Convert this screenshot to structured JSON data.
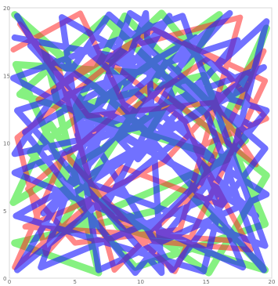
{
  "chart_data": {
    "type": "line",
    "xlim": [
      0,
      20
    ],
    "ylim": [
      0,
      20
    ],
    "y_ticks": [
      "0",
      "5",
      "10",
      "15",
      "20"
    ],
    "x_ticks": [
      "0",
      "5",
      "10",
      "15",
      "20"
    ],
    "grid": false,
    "legend": "none",
    "series": [
      {
        "color": "#22e61a",
        "points": [
          [
            0.4,
            19.5
          ],
          [
            6.2,
            14.6
          ],
          [
            11.6,
            19.6
          ],
          [
            17.5,
            12.7
          ],
          [
            19.6,
            18.5
          ],
          [
            13.8,
            6.2
          ],
          [
            19.5,
            0.6
          ],
          [
            8.3,
            3.8
          ],
          [
            3.1,
            11.4
          ],
          [
            0.3,
            5.6
          ],
          [
            7.5,
            9.8
          ],
          [
            12.4,
            13.2
          ],
          [
            19.6,
            7.6
          ],
          [
            15.2,
            0.4
          ],
          [
            4.4,
            7.4
          ],
          [
            0.5,
            15.8
          ],
          [
            9.8,
            15.2
          ],
          [
            16.0,
            19.5
          ],
          [
            10.6,
            10.7
          ],
          [
            2.5,
            17.6
          ],
          [
            6.8,
            0.4
          ],
          [
            0.4,
            2.6
          ],
          [
            11.2,
            5.0
          ],
          [
            18.0,
            10.2
          ],
          [
            8.8,
            19.4
          ],
          [
            5.1,
            12.7
          ],
          [
            14.8,
            15.0
          ],
          [
            19.5,
            4.0
          ],
          [
            9.6,
            0.8
          ],
          [
            1.6,
            9.3
          ],
          [
            12.9,
            17.4
          ],
          [
            3.6,
            3.4
          ],
          [
            16.6,
            8.8
          ],
          [
            0.8,
            13.6
          ],
          [
            7.3,
            19.2
          ],
          [
            15.9,
            11.3
          ]
        ]
      },
      {
        "color": "#ff2626",
        "points": [
          [
            0.3,
            16.9
          ],
          [
            5.4,
            19.6
          ],
          [
            9.0,
            12.3
          ],
          [
            15.4,
            16.4
          ],
          [
            19.6,
            11.8
          ],
          [
            14.2,
            9.6
          ],
          [
            18.4,
            2.1
          ],
          [
            10.2,
            2.8
          ],
          [
            4.2,
            9.2
          ],
          [
            0.4,
            0.8
          ],
          [
            6.5,
            5.8
          ],
          [
            12.6,
            0.5
          ],
          [
            19.5,
            14.6
          ],
          [
            11.0,
            18.4
          ],
          [
            2.2,
            13.2
          ],
          [
            7.0,
            16.5
          ],
          [
            13.4,
            11.6
          ],
          [
            16.2,
            5.4
          ],
          [
            8.6,
            8.2
          ],
          [
            2.8,
            1.8
          ],
          [
            0.6,
            10.4
          ],
          [
            9.4,
            17.2
          ],
          [
            17.6,
            19.3
          ],
          [
            13.0,
            3.6
          ],
          [
            5.0,
            2.6
          ],
          [
            1.4,
            6.6
          ],
          [
            10.8,
            14.4
          ],
          [
            18.8,
            8.4
          ],
          [
            15.6,
            13.0
          ],
          [
            6.0,
            12.0
          ],
          [
            0.8,
            18.8
          ],
          [
            3.8,
            15.4
          ],
          [
            8.0,
            0.6
          ],
          [
            14.6,
            7.0
          ],
          [
            19.4,
            16.8
          ],
          [
            11.8,
            8.6
          ],
          [
            4.8,
            5.2
          ],
          [
            1.2,
            3.8
          ],
          [
            16.8,
            2.8
          ]
        ]
      },
      {
        "color": "#1a1aff",
        "points": [
          [
            0.6,
            19.4
          ],
          [
            12.4,
            0.6
          ],
          [
            19.5,
            9.6
          ],
          [
            7.6,
            19.5
          ],
          [
            0.4,
            9.2
          ],
          [
            11.0,
            11.4
          ],
          [
            19.6,
            19.0
          ],
          [
            14.8,
            0.5
          ],
          [
            0.5,
            4.6
          ],
          [
            18.2,
            14.2
          ],
          [
            9.2,
            19.6
          ],
          [
            2.4,
            0.8
          ],
          [
            16.4,
            6.4
          ],
          [
            0.3,
            14.8
          ],
          [
            13.2,
            19.4
          ],
          [
            19.5,
            2.4
          ],
          [
            5.6,
            7.2
          ],
          [
            10.4,
            19.6
          ],
          [
            11.6,
            0.4
          ],
          [
            0.6,
            12.4
          ],
          [
            17.4,
            17.6
          ],
          [
            9.8,
            8.8
          ],
          [
            1.6,
            17.2
          ],
          [
            19.6,
            6.2
          ],
          [
            6.8,
            0.6
          ],
          [
            4.0,
            19.3
          ],
          [
            18.6,
            11.2
          ],
          [
            10.8,
            3.6
          ],
          [
            0.4,
            7.8
          ],
          [
            14.6,
            13.4
          ],
          [
            19.4,
            0.6
          ],
          [
            8.4,
            13.0
          ],
          [
            16.8,
            19.6
          ],
          [
            2.6,
            4.8
          ],
          [
            19.4,
            15.6
          ],
          [
            5.2,
            10.6
          ],
          [
            12.2,
            19.4
          ],
          [
            0.6,
            0.6
          ],
          [
            12.8,
            10.2
          ],
          [
            18.8,
            4.6
          ],
          [
            3.4,
            13.8
          ],
          [
            15.4,
            9.0
          ],
          [
            6.2,
            16.6
          ],
          [
            19.6,
            12.4
          ],
          [
            9.6,
            0.4
          ],
          [
            1.2,
            10.8
          ],
          [
            14.2,
            17.8
          ],
          [
            7.4,
            5.4
          ],
          [
            17.8,
            0.8
          ],
          [
            11.4,
            15.8
          ],
          [
            0.4,
            17.8
          ]
        ]
      }
    ]
  }
}
